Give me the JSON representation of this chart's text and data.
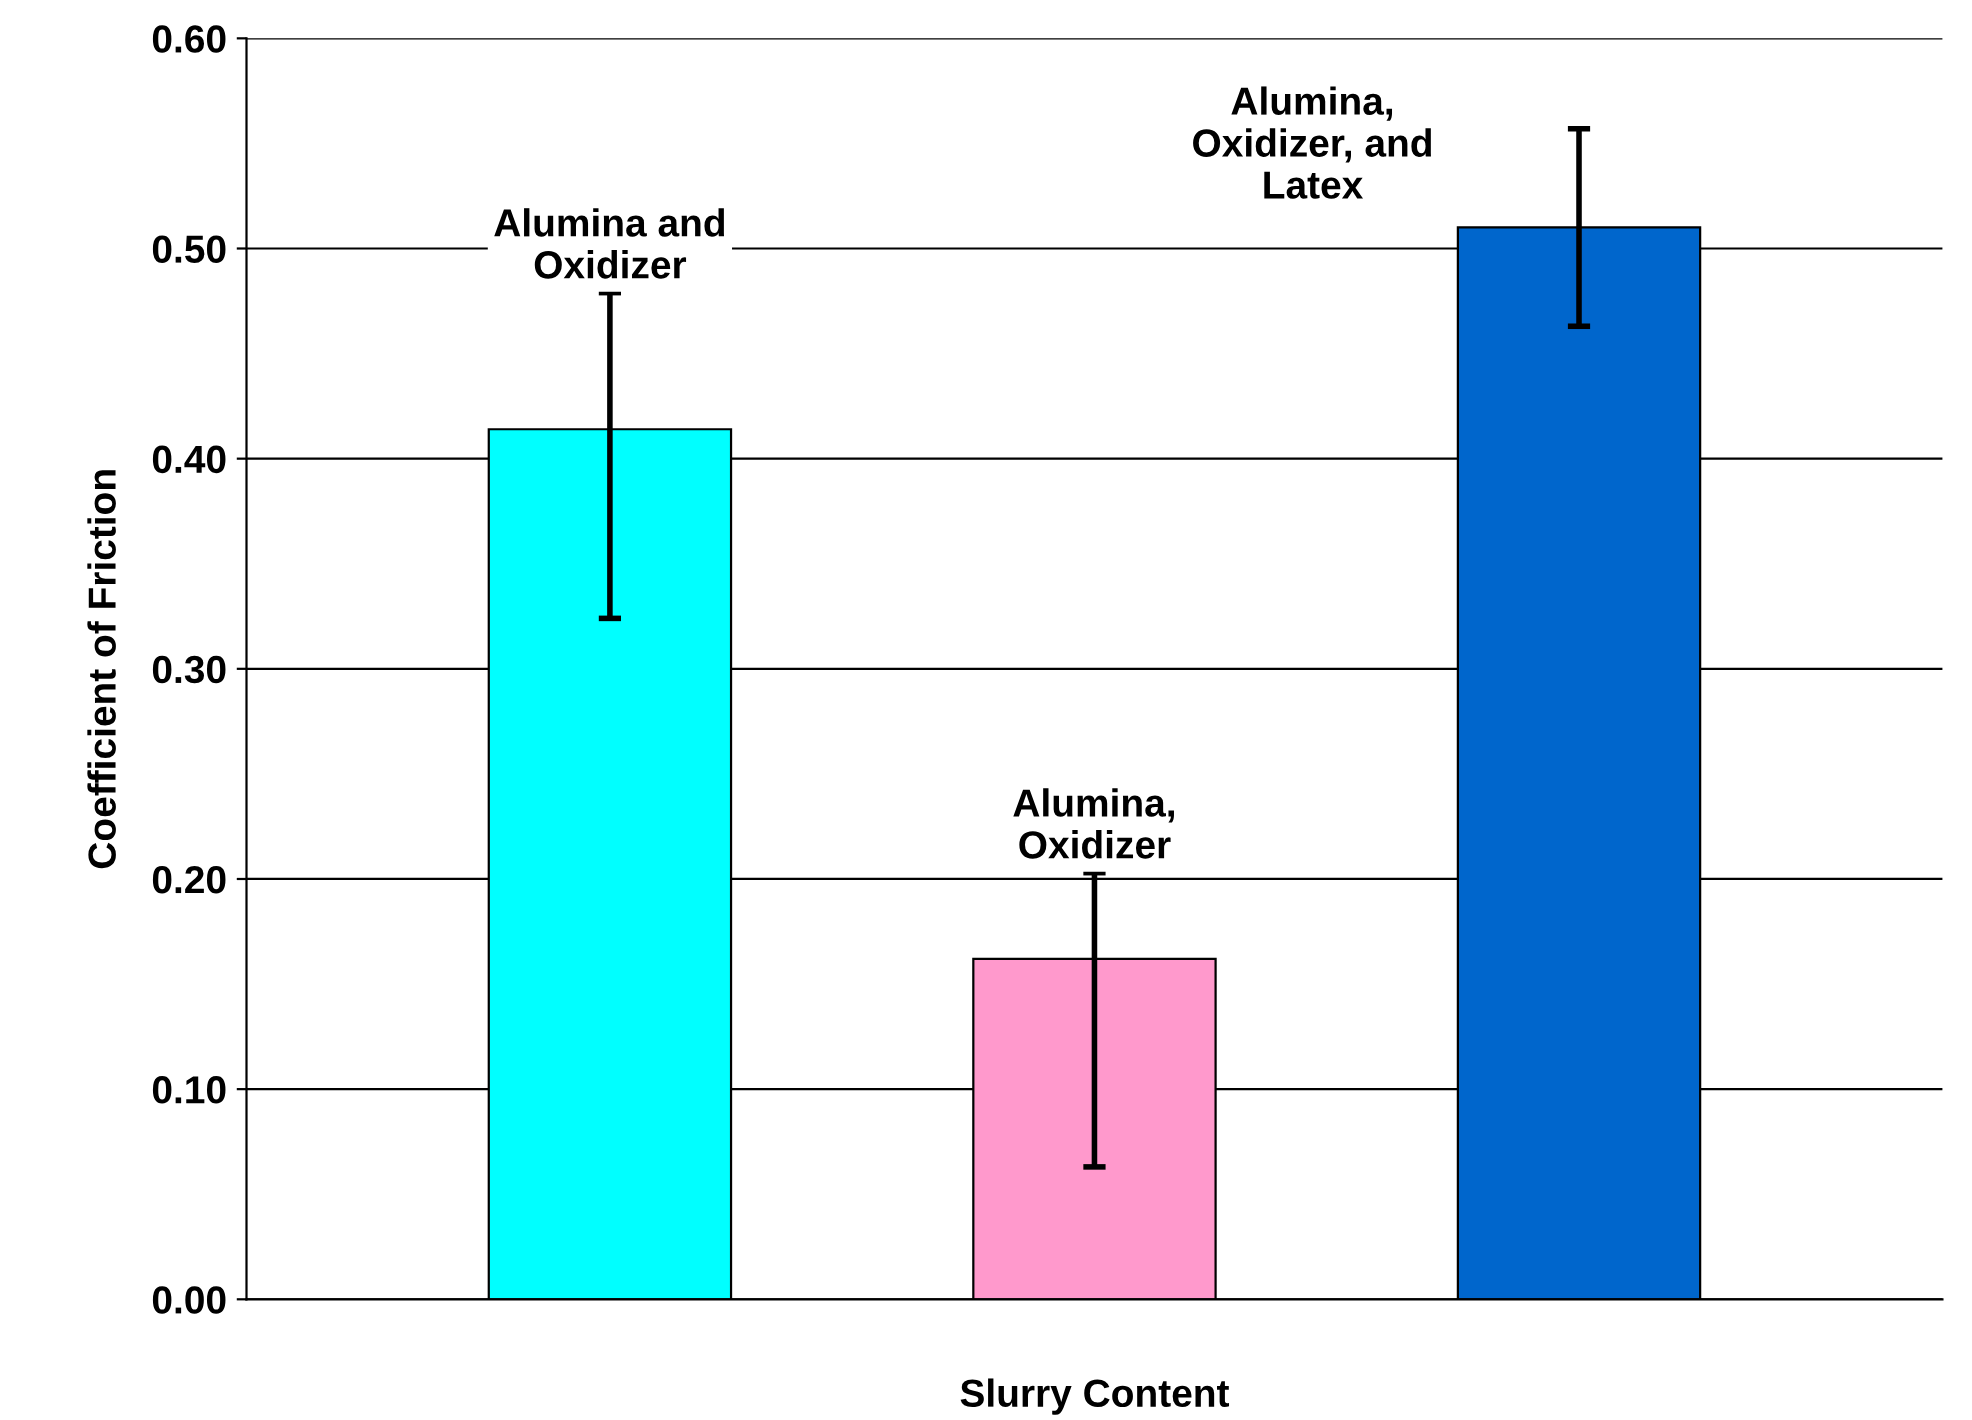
{
  "chart_data": {
    "type": "bar",
    "xlabel": "Slurry Content",
    "ylabel": "Coefficient of Friction",
    "categories": [
      null,
      null,
      null
    ],
    "values": [
      0.414,
      0.162,
      0.51
    ],
    "colors": [
      "#00ffff",
      "#ff99cc",
      "#0066cc"
    ],
    "errors": [
      [
        0.324,
        0.479
      ],
      [
        0.063,
        0.203
      ],
      [
        0.463,
        0.557
      ]
    ],
    "annotations": [
      "Alumina and\nOxidizer",
      "Alumina,\nOxidizer",
      "Alumina,\nOxidizer, and\nLatex"
    ],
    "ylim": [
      0,
      0.6
    ],
    "yticks": [
      {
        "value": 0,
        "label": "0.00"
      },
      {
        "value": 0.1,
        "label": "0.10"
      },
      {
        "value": 0.2,
        "label": "0.20"
      },
      {
        "value": 0.3,
        "label": "0.30"
      },
      {
        "value": 0.4,
        "label": "0.40"
      },
      {
        "value": 0.5,
        "label": "0.50"
      },
      {
        "value": 0.6,
        "label": "0.60"
      }
    ],
    "grid": "y",
    "legend": false
  }
}
